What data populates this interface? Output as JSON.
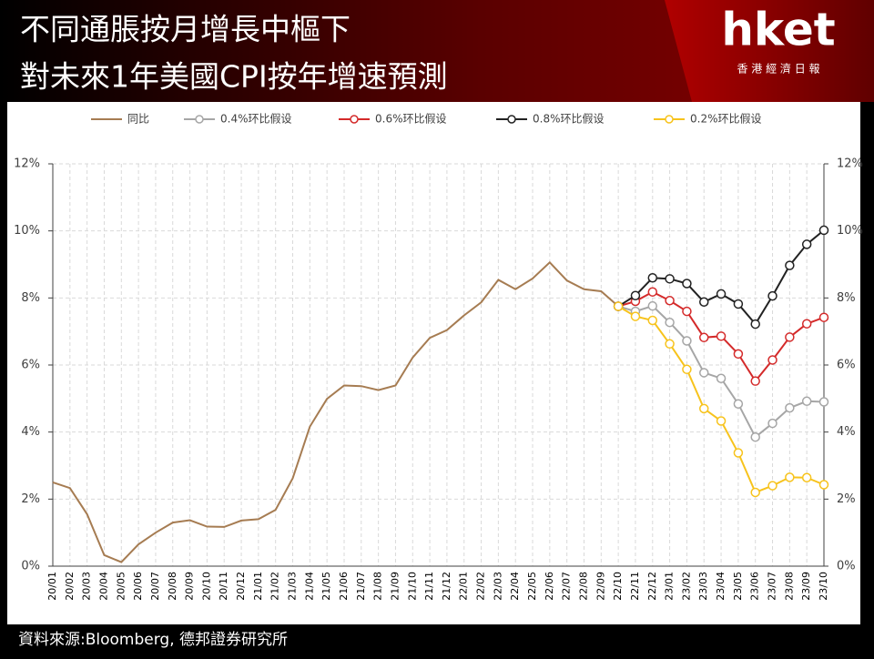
{
  "header": {
    "title_lines": [
      "不同通脹按月增長中樞下",
      "對未來1年美國CPI按年增速預測"
    ],
    "logo": "hket",
    "logo_sub": "香 港 經 濟 日 報"
  },
  "source": "資料來源:Bloomberg, 德邦證券研究所",
  "chart_data": {
    "type": "line",
    "categories": [
      "20/01",
      "20/02",
      "20/03",
      "20/04",
      "20/05",
      "20/06",
      "20/07",
      "20/08",
      "20/09",
      "20/10",
      "20/11",
      "20/12",
      "21/01",
      "21/02",
      "21/03",
      "21/04",
      "21/05",
      "21/06",
      "21/07",
      "21/08",
      "21/09",
      "21/10",
      "21/11",
      "21/12",
      "22/01",
      "22/02",
      "22/03",
      "22/04",
      "22/05",
      "22/06",
      "22/07",
      "22/08",
      "22/09",
      "22/10",
      "22/11",
      "22/12",
      "23/01",
      "23/02",
      "23/03",
      "23/04",
      "23/05",
      "23/06",
      "23/07",
      "23/08",
      "23/09",
      "23/10"
    ],
    "series": [
      {
        "name": "同比",
        "color": "#a67c52",
        "markers": false,
        "values": [
          2.5,
          2.33,
          1.55,
          0.33,
          0.12,
          0.65,
          1.0,
          1.3,
          1.37,
          1.18,
          1.17,
          1.36,
          1.4,
          1.68,
          2.62,
          4.16,
          4.99,
          5.39,
          5.37,
          5.25,
          5.39,
          6.22,
          6.81,
          7.04,
          7.48,
          7.87,
          8.54,
          8.26,
          8.58,
          9.06,
          8.52,
          8.26,
          8.2,
          7.75,
          null,
          null,
          null,
          null,
          null,
          null,
          null,
          null,
          null,
          null,
          null,
          null
        ]
      },
      {
        "name": "0.4%环比假设",
        "color": "#a6a6a6",
        "markers": true,
        "values": [
          null,
          null,
          null,
          null,
          null,
          null,
          null,
          null,
          null,
          null,
          null,
          null,
          null,
          null,
          null,
          null,
          null,
          null,
          null,
          null,
          null,
          null,
          null,
          null,
          null,
          null,
          null,
          null,
          null,
          null,
          null,
          null,
          null,
          7.75,
          7.6,
          7.76,
          7.27,
          6.72,
          5.77,
          5.6,
          4.84,
          3.85,
          4.26,
          4.72,
          4.92,
          4.9
        ]
      },
      {
        "name": "0.6%环比假设",
        "color": "#d42a2a",
        "markers": true,
        "values": [
          null,
          null,
          null,
          null,
          null,
          null,
          null,
          null,
          null,
          null,
          null,
          null,
          null,
          null,
          null,
          null,
          null,
          null,
          null,
          null,
          null,
          null,
          null,
          null,
          null,
          null,
          null,
          null,
          null,
          null,
          null,
          null,
          null,
          7.75,
          7.9,
          8.18,
          7.92,
          7.6,
          6.82,
          6.86,
          6.33,
          5.52,
          6.15,
          6.83,
          7.23,
          7.42
        ]
      },
      {
        "name": "0.8%环比假设",
        "color": "#222222",
        "markers": true,
        "values": [
          null,
          null,
          null,
          null,
          null,
          null,
          null,
          null,
          null,
          null,
          null,
          null,
          null,
          null,
          null,
          null,
          null,
          null,
          null,
          null,
          null,
          null,
          null,
          null,
          null,
          null,
          null,
          null,
          null,
          null,
          null,
          null,
          null,
          7.75,
          8.07,
          8.6,
          8.57,
          8.43,
          7.88,
          8.12,
          7.82,
          7.22,
          8.06,
          8.97,
          9.6,
          10.02
        ]
      },
      {
        "name": "0.2%环比假设",
        "color": "#f7c31c",
        "markers": true,
        "values": [
          null,
          null,
          null,
          null,
          null,
          null,
          null,
          null,
          null,
          null,
          null,
          null,
          null,
          null,
          null,
          null,
          null,
          null,
          null,
          null,
          null,
          null,
          null,
          null,
          null,
          null,
          null,
          null,
          null,
          null,
          null,
          null,
          null,
          7.75,
          7.45,
          7.33,
          6.63,
          5.87,
          4.7,
          4.33,
          3.38,
          2.2,
          2.4,
          2.65,
          2.64,
          2.43
        ]
      }
    ],
    "ylim": [
      0,
      12
    ],
    "yticks": [
      {
        "value": 0,
        "label": "0%"
      },
      {
        "value": 2,
        "label": "2%"
      },
      {
        "value": 4,
        "label": "4%"
      },
      {
        "value": 6,
        "label": "6%"
      },
      {
        "value": 8,
        "label": "8%"
      },
      {
        "value": 10,
        "label": "10%"
      },
      {
        "value": 12,
        "label": "12%"
      }
    ],
    "y2lim": [
      0,
      12
    ],
    "y2ticks": [
      {
        "value": 0,
        "label": "0%"
      },
      {
        "value": 2,
        "label": "2%"
      },
      {
        "value": 4,
        "label": "4%"
      },
      {
        "value": 6,
        "label": "6%"
      },
      {
        "value": 8,
        "label": "8%"
      },
      {
        "value": 10,
        "label": "10%"
      },
      {
        "value": 12,
        "label": "12%"
      }
    ],
    "grid": true,
    "legend": "top"
  }
}
